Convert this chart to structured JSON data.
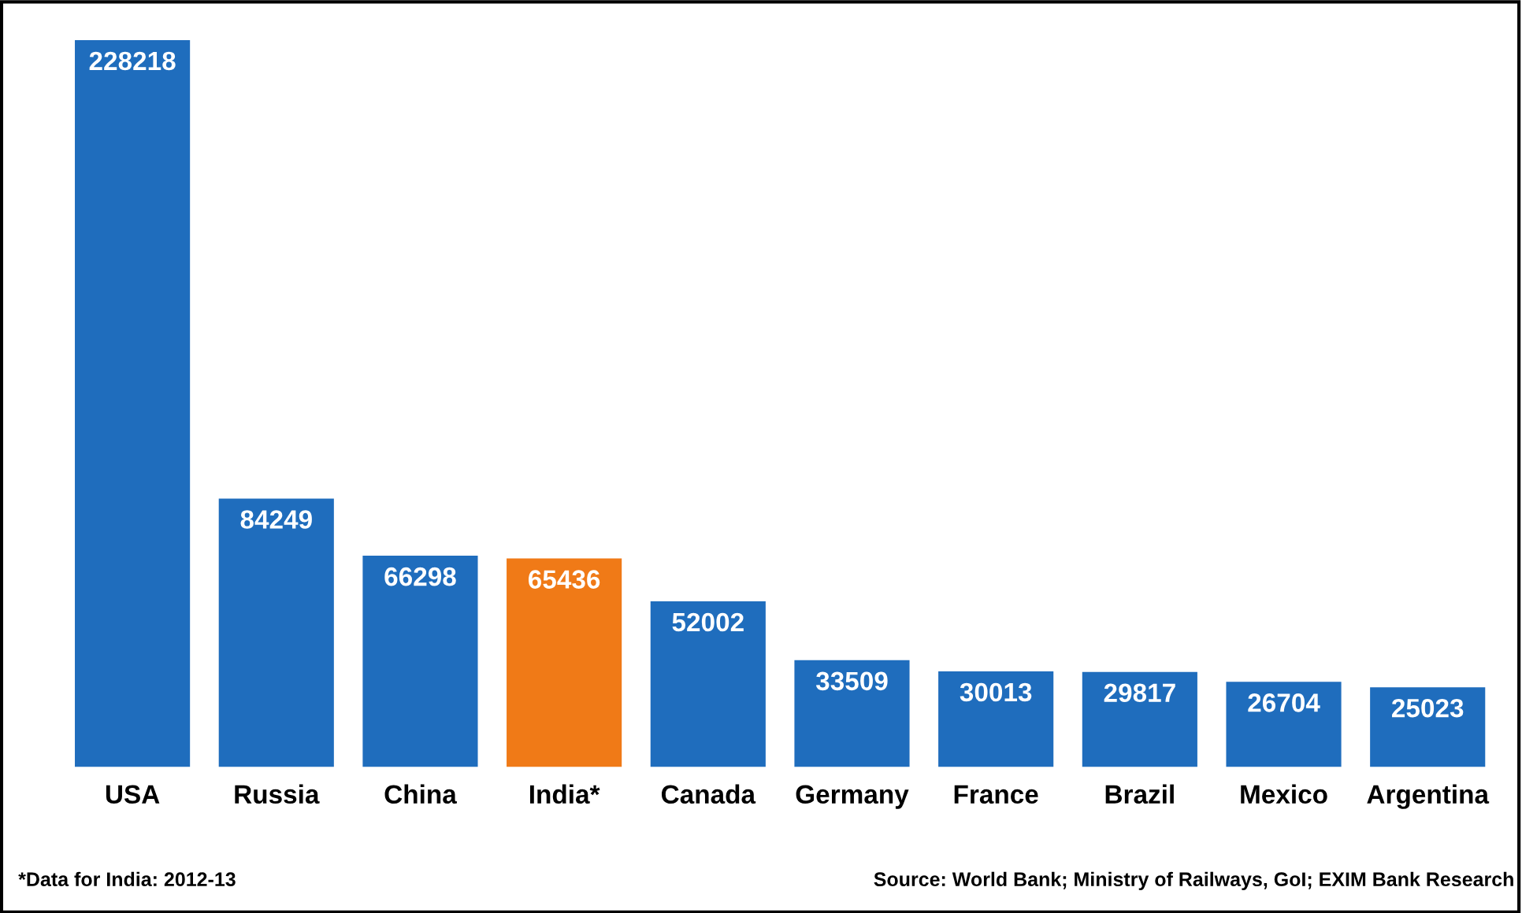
{
  "chart_data": {
    "type": "bar",
    "categories": [
      "USA",
      "Russia",
      "China",
      "India*",
      "Canada",
      "Germany",
      "France",
      "Brazil",
      "Mexico",
      "Argentina"
    ],
    "values": [
      228218,
      84249,
      66298,
      65436,
      52002,
      33509,
      30013,
      29817,
      26704,
      25023
    ],
    "colors": [
      "#1f6dbd",
      "#1f6dbd",
      "#1f6dbd",
      "#f07a17",
      "#1f6dbd",
      "#1f6dbd",
      "#1f6dbd",
      "#1f6dbd",
      "#1f6dbd",
      "#1f6dbd"
    ],
    "data_labels": true,
    "annotations": [
      "*Data for India: 2012-13",
      "Source: World Bank; Ministry of Railways, GoI; EXIM Bank Research"
    ]
  }
}
